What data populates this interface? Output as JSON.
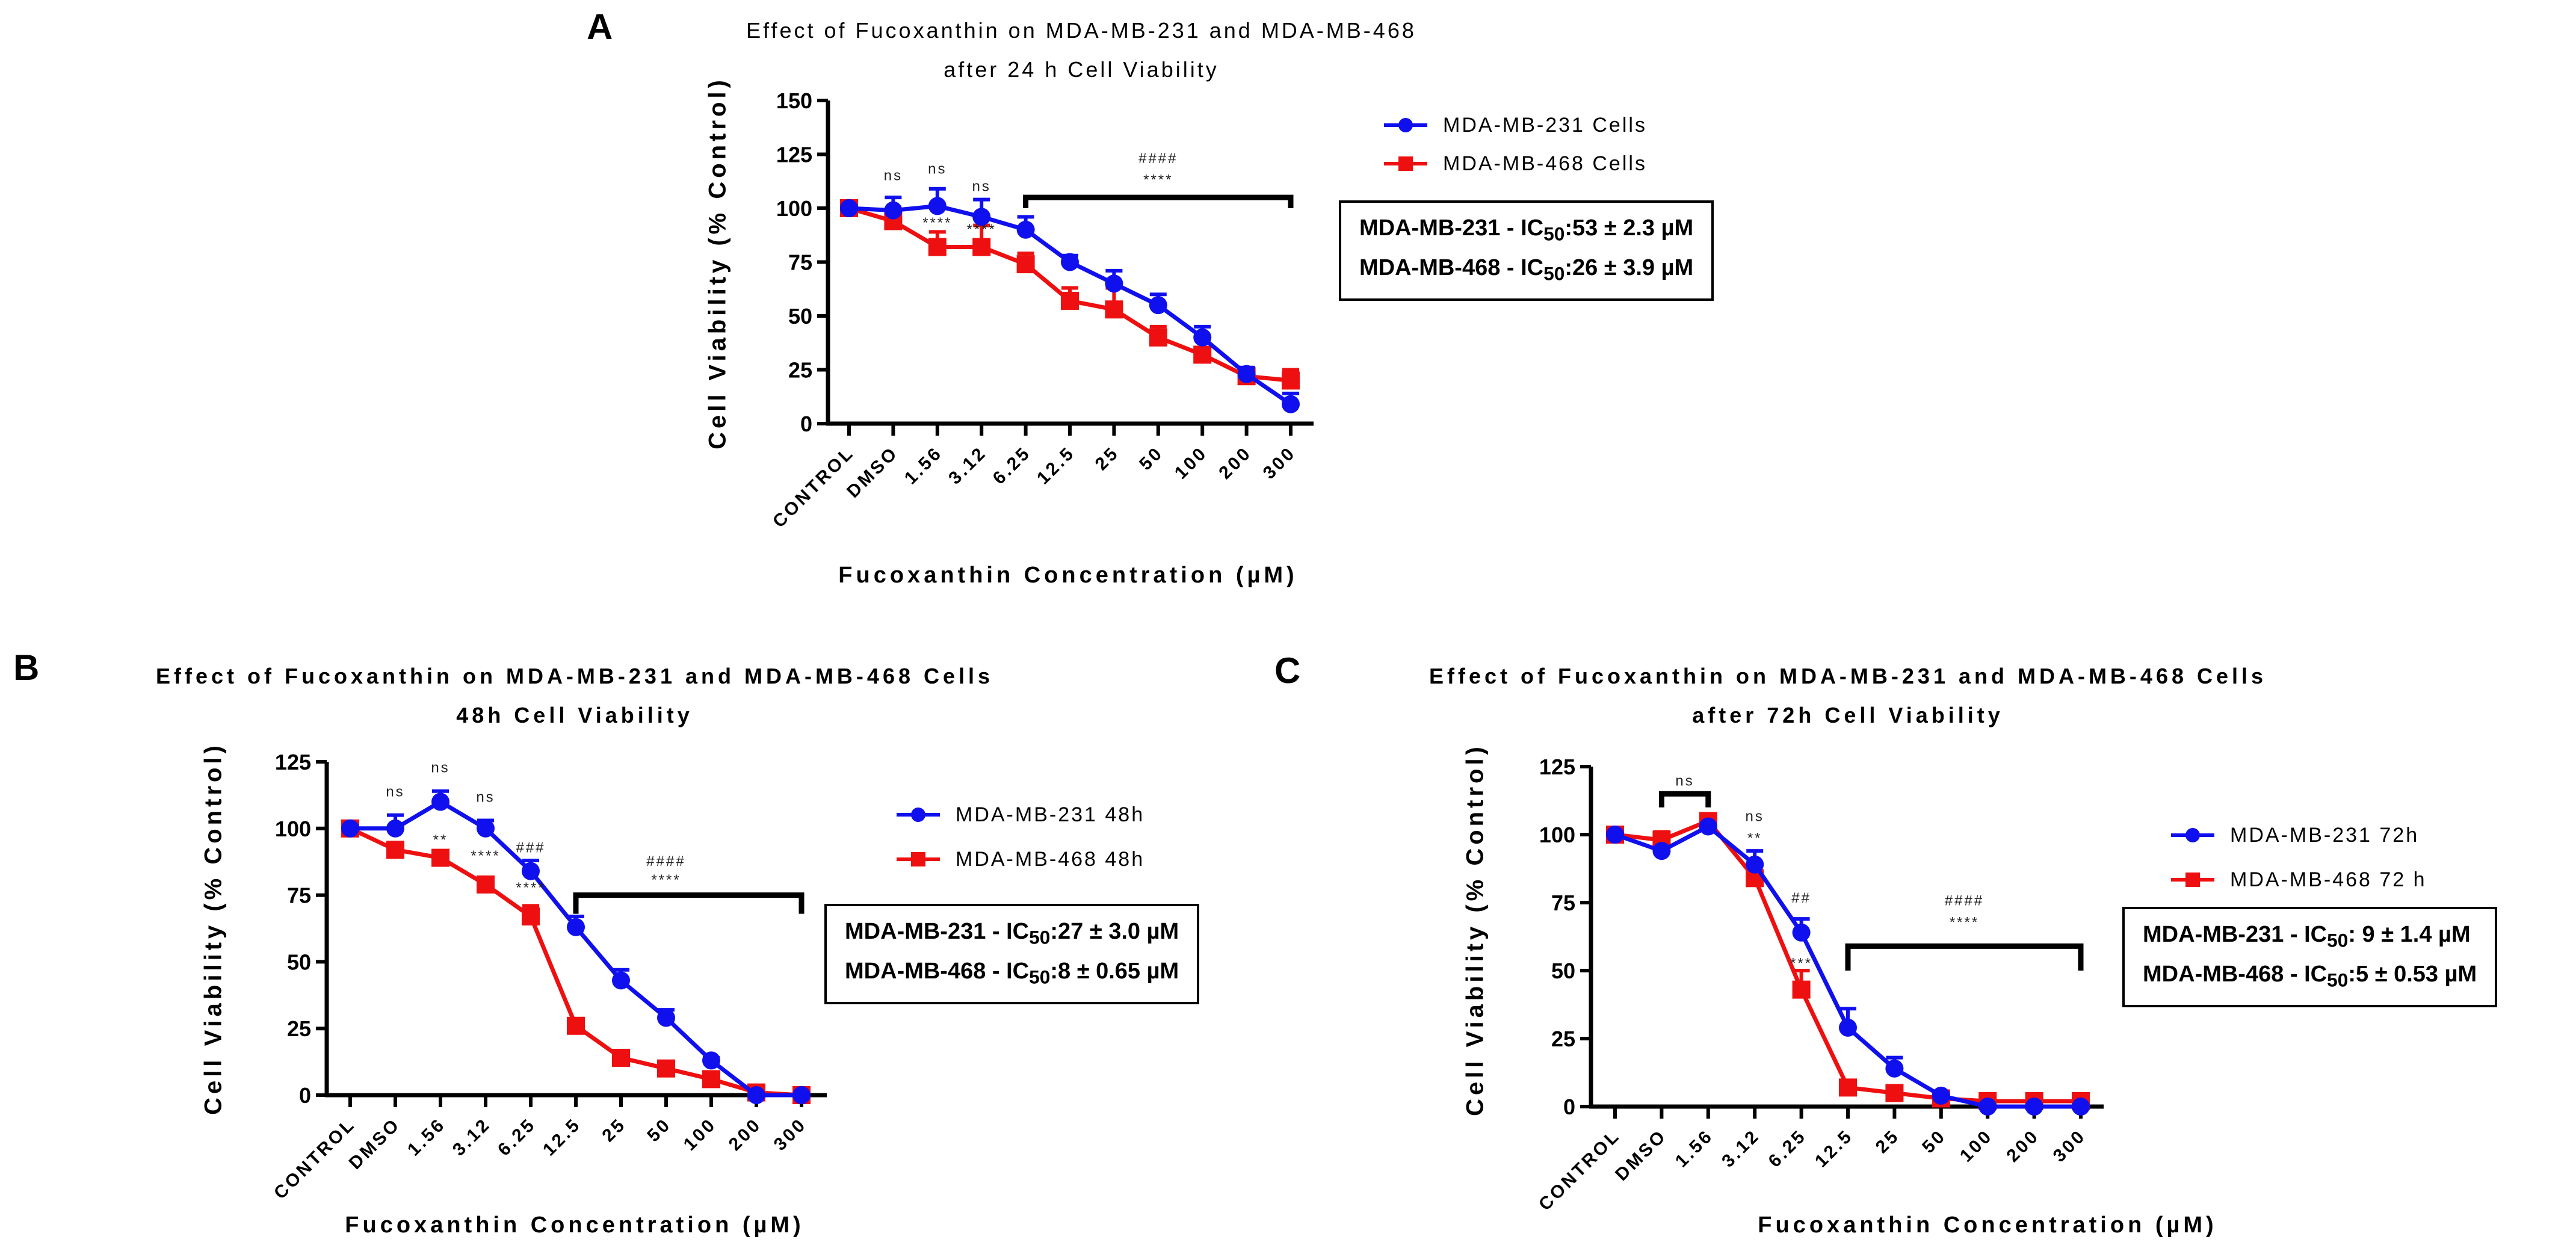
{
  "colors": {
    "blue": "#1010ee",
    "red": "#ee1010"
  },
  "chart_data": [
    {
      "type": "line",
      "panel": "A",
      "title": [
        "Effect of Fucoxanthin on MDA-MB-231 and MDA-MB-468",
        "after 24 h Cell Viability"
      ],
      "xlabel": "Fucoxanthin Concentration (µM)",
      "ylabel": "Cell Viability (% Control)",
      "categories": [
        "CONTROL",
        "DMSO",
        "1.56",
        "3.12",
        "6.25",
        "12.5",
        "25",
        "50",
        "100",
        "200",
        "300"
      ],
      "yticks": [
        0,
        25,
        50,
        75,
        100,
        125,
        150
      ],
      "ylim": [
        0,
        150
      ],
      "series": [
        {
          "name": "MDA-MB-231 Cells",
          "color": "blue",
          "marker": "circle",
          "values": [
            100,
            99,
            101,
            96,
            90,
            75,
            65,
            55,
            40,
            23,
            9
          ],
          "errors": [
            1,
            6,
            8,
            8,
            6,
            3,
            6,
            5,
            5,
            3,
            5
          ]
        },
        {
          "name": "MDA-MB-468 Cells",
          "color": "red",
          "marker": "square",
          "values": [
            100,
            94,
            82,
            82,
            74,
            57,
            53,
            40,
            32,
            22,
            20
          ],
          "errors": [
            1,
            2,
            7,
            10,
            5,
            6,
            10,
            5,
            3,
            4,
            5
          ]
        }
      ],
      "ic50": [
        "MDA-MB-231  - IC50:53 ± 2.3 µM",
        "MDA-MB-468  - IC50:26 ± 3.9 µM"
      ],
      "ic50_parts": [
        [
          "MDA-MB-231  - IC",
          "50",
          ":53 ± 2.3 µM"
        ],
        [
          "MDA-MB-468  - IC",
          "50",
          ":26 ± 3.9 µM"
        ]
      ],
      "annotations": [
        {
          "text": "ns",
          "x": 1,
          "y": 113
        },
        {
          "text": "ns",
          "x": 2,
          "y": 116
        },
        {
          "text": "ns",
          "x": 3,
          "y": 108
        },
        {
          "text": "****",
          "x": 2,
          "y": 91
        },
        {
          "text": "****",
          "x": 3,
          "y": 88
        },
        {
          "text": "####",
          "x": 7,
          "y": 121
        },
        {
          "text": "****",
          "x": 7,
          "y": 111
        }
      ],
      "brackets": [
        {
          "from": 4,
          "to": 10,
          "y": 105,
          "drop": 100
        }
      ]
    },
    {
      "type": "line",
      "panel": "B",
      "title": [
        "Effect of Fucoxanthin on MDA-MB-231 and MDA-MB-468 Cells",
        "48h Cell Viability"
      ],
      "xlabel": "Fucoxanthin Concentration (µM)",
      "ylabel": "Cell Viability (% Control)",
      "categories": [
        "CONTROL",
        "DMSO",
        "1.56",
        "3.12",
        "6.25",
        "12.5",
        "25",
        "50",
        "100",
        "200",
        "300"
      ],
      "yticks": [
        0,
        25,
        50,
        75,
        100,
        125
      ],
      "ylim": [
        0,
        125
      ],
      "series": [
        {
          "name": "MDA-MB-231 48h",
          "color": "blue",
          "marker": "circle",
          "values": [
            100,
            100,
            110,
            100,
            84,
            63,
            43,
            29,
            13,
            0,
            0
          ],
          "errors": [
            1,
            5,
            4,
            3,
            4,
            4,
            4,
            3,
            1,
            0,
            0
          ]
        },
        {
          "name": "MDA-MB-468 48h",
          "color": "red",
          "marker": "square",
          "values": [
            100,
            92,
            89,
            79,
            67,
            26,
            14,
            10,
            6,
            1,
            0
          ],
          "errors": [
            1,
            1,
            1,
            1,
            4,
            1,
            1,
            1,
            1,
            1,
            1
          ]
        }
      ],
      "ic50": [
        "MDA-MB-231  - IC50:27 ± 3.0 µM",
        "MDA-MB-468  - IC50:8 ± 0.65 µM"
      ],
      "ic50_parts": [
        [
          "MDA-MB-231  - IC",
          "50",
          ":27 ± 3.0 µM"
        ],
        [
          "MDA-MB-468  - IC",
          "50",
          ":8 ± 0.65 µM"
        ]
      ],
      "annotations": [
        {
          "text": "ns",
          "x": 1,
          "y": 112
        },
        {
          "text": "ns",
          "x": 2,
          "y": 121
        },
        {
          "text": "ns",
          "x": 3,
          "y": 110
        },
        {
          "text": "**",
          "x": 2,
          "y": 94
        },
        {
          "text": "****",
          "x": 3,
          "y": 88
        },
        {
          "text": "###",
          "x": 4,
          "y": 91
        },
        {
          "text": "****",
          "x": 4,
          "y": 76
        },
        {
          "text": "####",
          "x": 7,
          "y": 86
        },
        {
          "text": "****",
          "x": 7,
          "y": 79
        }
      ],
      "brackets": [
        {
          "from": 5,
          "to": 10,
          "y": 75,
          "drop": 68
        }
      ]
    },
    {
      "type": "line",
      "panel": "C",
      "title": [
        "Effect of Fucoxanthin on MDA-MB-231 and MDA-MB-468 Cells",
        "after 72h Cell Viability"
      ],
      "xlabel": "Fucoxanthin Concentration (µM)",
      "ylabel": "Cell Viability (% Control)",
      "categories": [
        "CONTROL",
        "DMSO",
        "1.56",
        "3.12",
        "6.25",
        "12.5",
        "25",
        "50",
        "100",
        "200",
        "300"
      ],
      "yticks": [
        0,
        25,
        50,
        75,
        100,
        125
      ],
      "ylim": [
        0,
        125
      ],
      "series": [
        {
          "name": "MDA-MB-231 72h",
          "color": "blue",
          "marker": "circle",
          "values": [
            100,
            94,
            103,
            89,
            64,
            29,
            14,
            4,
            0,
            0,
            0
          ],
          "errors": [
            1,
            1,
            1,
            5,
            5,
            7,
            4,
            1,
            0,
            0,
            0
          ]
        },
        {
          "name": "MDA-MB-468 72 h",
          "color": "red",
          "marker": "square",
          "values": [
            100,
            98,
            105,
            84,
            43,
            7,
            5,
            3,
            2,
            2,
            2
          ],
          "errors": [
            1,
            3,
            2,
            1,
            7,
            1,
            1,
            1,
            1,
            1,
            1
          ]
        }
      ],
      "ic50": [
        "MDA-MB-231  - IC50: 9 ± 1.4 µM",
        "MDA-MB-468  - IC50:5 ± 0.53 µM"
      ],
      "ic50_parts": [
        [
          "MDA-MB-231  - IC",
          "50",
          ": 9 ± 1.4 µM"
        ],
        [
          "MDA-MB-468  - IC",
          "50",
          ":5 ± 0.53 µM"
        ]
      ],
      "annotations": [
        {
          "text": "ns",
          "x": 1.5,
          "y": 118
        },
        {
          "text": "ns",
          "x": 3,
          "y": 105
        },
        {
          "text": "**",
          "x": 3,
          "y": 97
        },
        {
          "text": "##",
          "x": 4,
          "y": 75
        },
        {
          "text": "***",
          "x": 4,
          "y": 51
        },
        {
          "text": "####",
          "x": 7.5,
          "y": 74
        },
        {
          "text": "****",
          "x": 7.5,
          "y": 66
        }
      ],
      "brackets": [
        {
          "from": 1,
          "to": 2,
          "y": 115,
          "drop": 110
        },
        {
          "from": 5,
          "to": 10,
          "y": 59,
          "drop": 50
        }
      ]
    }
  ]
}
